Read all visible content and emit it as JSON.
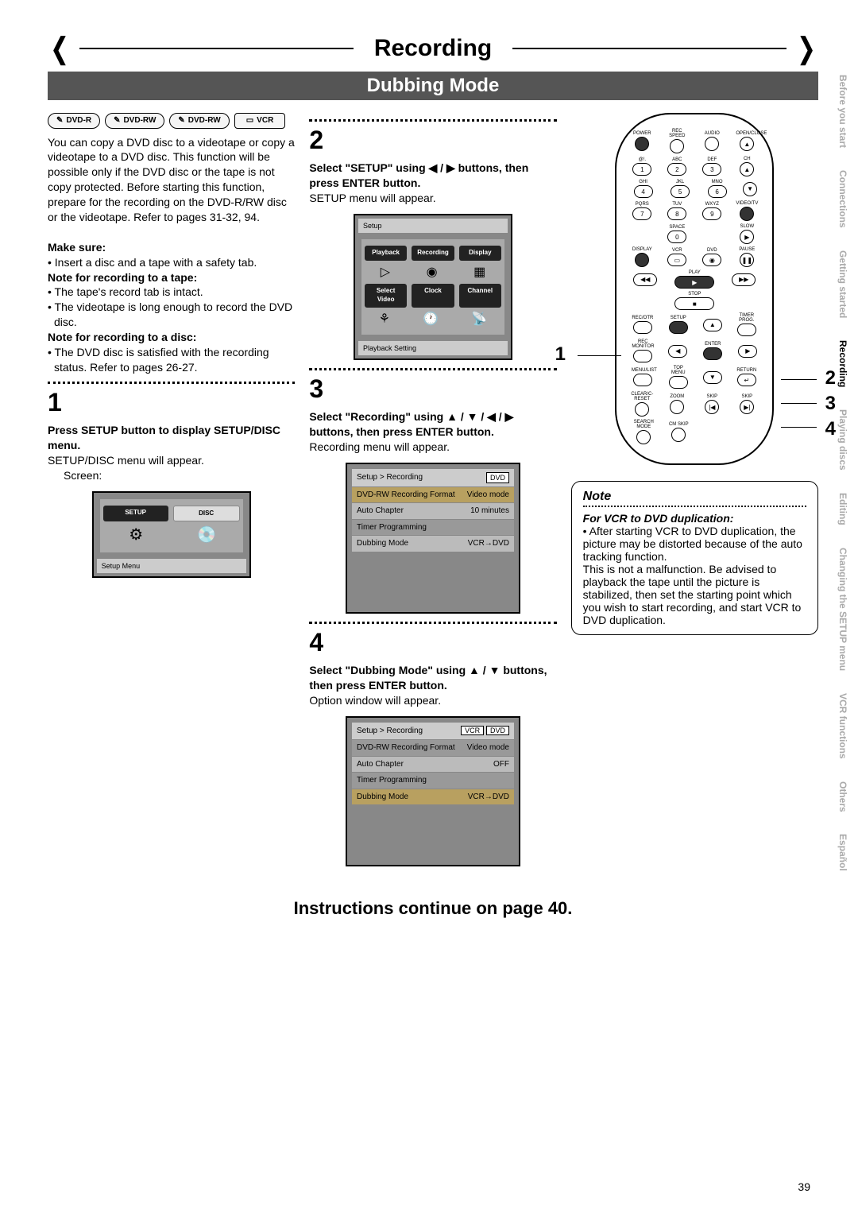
{
  "header": {
    "title": "Recording",
    "subtitle": "Dubbing Mode"
  },
  "media_icons": [
    "DVD-R",
    "DVD-RW",
    "DVD-RW",
    "VCR"
  ],
  "col1": {
    "intro": "You can copy a DVD disc to a videotape or copy a videotape to a DVD disc. This function will be possible only if the DVD disc or the tape is not copy protected. Before starting this function, prepare for the recording on the DVD-R/RW disc or the videotape. Refer to pages 31-32, 94.",
    "make_sure": "Make sure:",
    "make_sure_1": "• Insert a disc and a tape with a safety tab.",
    "note_tape": "Note for recording to a tape:",
    "note_tape_1": "• The tape's record tab is intact.",
    "note_tape_2": "• The videotape is long enough to record the DVD disc.",
    "note_disc": "Note for recording to a disc:",
    "note_disc_1": "• The DVD disc is satisfied with the recording status. Refer to pages 26-27.",
    "step1_num": "1",
    "step1_h": "Press SETUP button to display SETUP/DISC menu.",
    "step1_t": "SETUP/DISC menu will appear.",
    "step1_caption": "Screen:",
    "screen1": {
      "setup": "SETUP",
      "disc": "DISC",
      "label": "Setup Menu"
    }
  },
  "col2": {
    "step2_num": "2",
    "step2_h": "Select \"SETUP\" using ◀ / ▶ buttons, then press ENTER button.",
    "step2_t": "SETUP menu will appear.",
    "screen2": {
      "top": "Setup",
      "r1": [
        "Playback",
        "Recording",
        "Display"
      ],
      "r2": [
        "Select Video",
        "Clock",
        "Channel"
      ],
      "bottom": "Playback Setting"
    },
    "step3_num": "3",
    "step3_h": "Select \"Recording\" using ▲ / ▼ / ◀ / ▶ buttons, then press ENTER button.",
    "step3_t": "Recording menu will appear.",
    "screen3": {
      "header": "Setup > Recording",
      "tag": "DVD",
      "rows": [
        [
          "DVD-RW Recording Format",
          "Video mode"
        ],
        [
          "Auto Chapter",
          "10 minutes"
        ],
        [
          "Timer Programming",
          ""
        ],
        [
          "Dubbing Mode",
          "VCR→DVD"
        ]
      ]
    },
    "step4_num": "4",
    "step4_h": "Select \"Dubbing Mode\" using ▲ / ▼ buttons, then press ENTER button.",
    "step4_t": "Option window will appear.",
    "screen4": {
      "header": "Setup > Recording",
      "tag1": "VCR",
      "tag2": "DVD",
      "rows": [
        [
          "DVD-RW Recording Format",
          "Video mode"
        ],
        [
          "Auto Chapter",
          "OFF"
        ],
        [
          "Timer Programming",
          ""
        ],
        [
          "Dubbing Mode",
          "VCR→DVD"
        ]
      ]
    }
  },
  "remote": {
    "labels_row1": [
      "POWER",
      "REC SPEED",
      "AUDIO",
      "OPEN/CLOSE"
    ],
    "labels_row2": [
      "@!.",
      "ABC",
      "DEF"
    ],
    "nums_row2": [
      "1",
      "2",
      "3"
    ],
    "labels_row3": [
      "GHI",
      "JKL",
      "MNO"
    ],
    "nums_row3": [
      "4",
      "5",
      "6"
    ],
    "labels_row4": [
      "PQRS",
      "TUV",
      "WXYZ",
      "VIDEO/TV"
    ],
    "nums_row4": [
      "7",
      "8",
      "9"
    ],
    "space": "SPACE",
    "zero": "0",
    "slow": "SLOW",
    "row5": [
      "DISPLAY",
      "VCR",
      "DVD",
      "PAUSE"
    ],
    "play": "PLAY",
    "stop": "STOP",
    "row6": [
      "REC/OTR",
      "SETUP",
      "",
      "TIMER PROG."
    ],
    "row7": [
      "REC MONITOR",
      "",
      "ENTER",
      ""
    ],
    "row8": [
      "MENU/LIST",
      "TOP MENU",
      "",
      "RETURN"
    ],
    "row9": [
      "CLEAR/C-RESET",
      "ZOOM",
      "SKIP",
      "SKIP"
    ],
    "row10": [
      "SEARCH MODE",
      "CM SKIP"
    ],
    "pointers": {
      "p1": "1",
      "p2": "2",
      "p3": "3",
      "p4": "4"
    }
  },
  "note": {
    "title": "Note",
    "sub": "For VCR to DVD duplication:",
    "body": "• After starting VCR to DVD duplication, the picture may be distorted because of the auto tracking function.\nThis is not a malfunction. Be advised to playback the tape until the picture is stabilized, then set the starting point which you wish to start recording, and start VCR to DVD duplication."
  },
  "tabs": [
    "Before you start",
    "Connections",
    "Getting started",
    "Recording",
    "Playing discs",
    "Editing",
    "Changing the SETUP menu",
    "VCR functions",
    "Others",
    "Español"
  ],
  "tabs_active_index": 3,
  "continue": "Instructions continue on page 40.",
  "page": "39"
}
